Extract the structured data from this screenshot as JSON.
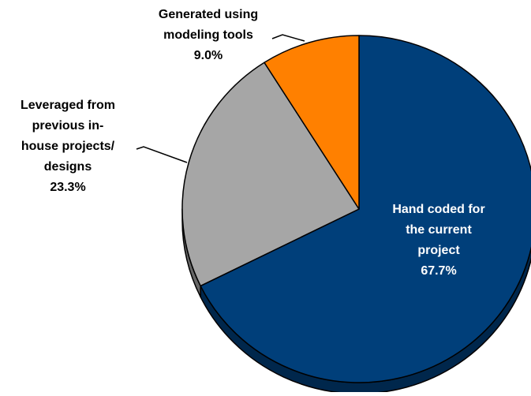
{
  "chart_data": {
    "type": "pie",
    "title": "",
    "slices": [
      {
        "label_lines": [
          "Hand coded for",
          "the current",
          "project"
        ],
        "value": 67.7,
        "value_label": "67.7%",
        "color": "#003f7a",
        "label_color": "#ffffff"
      },
      {
        "label_lines": [
          "Leveraged from",
          "previous in-",
          "house projects/",
          "designs"
        ],
        "value": 23.3,
        "value_label": "23.3%",
        "color": "#a6a6a6",
        "label_color": "#000000"
      },
      {
        "label_lines": [
          "Generated using",
          "modeling tools"
        ],
        "value": 9.0,
        "value_label": "9.0%",
        "color": "#ff8000",
        "label_color": "#000000"
      }
    ],
    "start_position": "12 o'clock",
    "direction": "clockwise",
    "style": "3d-tilted",
    "legend": "none"
  }
}
